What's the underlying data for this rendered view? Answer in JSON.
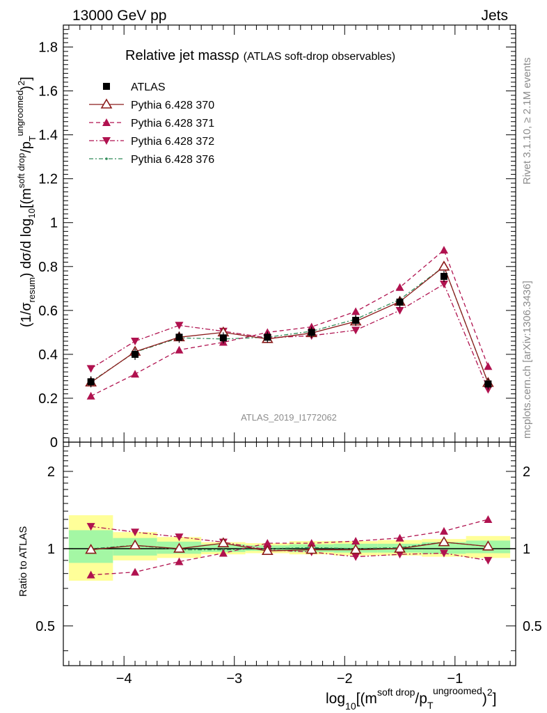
{
  "header": {
    "left": "13000 GeV pp",
    "right": "Jets"
  },
  "side_labels": {
    "rivet": "Rivet 3.1.10, ≥ 2.1M events",
    "mcplots": "mcplots.cern.ch [arXiv:1306.3436]"
  },
  "watermark": "ATLAS_2019_I1772062",
  "colors": {
    "data": "#000000",
    "s370": "#8b1a1a",
    "s371": "#b0124f",
    "s372": "#b0124f",
    "s376": "#2e8b57",
    "band_inner": "#a4f7a4",
    "band_outer": "#ffff99"
  },
  "chart_data": [
    {
      "type": "line",
      "title": "Relative jet massρ",
      "subtitle": "(ATLAS soft-drop observables)",
      "ylabel": "(1/σ_resum) dσ/d log10[(m^soft drop/p_T^ungroomed)^2]",
      "ylim": [
        0,
        1.9
      ],
      "yticks": [
        0,
        0.2,
        0.4,
        0.6,
        0.8,
        1,
        1.2,
        1.4,
        1.6,
        1.8
      ],
      "ytick_labels": [
        "0",
        "0.2",
        "0.4",
        "0.6",
        "0.8",
        "1",
        "1.2",
        "1.4",
        "1.6",
        "1.8"
      ],
      "x": [
        -4.3,
        -3.9,
        -3.5,
        -3.1,
        -2.7,
        -2.3,
        -1.9,
        -1.5,
        -1.1,
        -0.7
      ],
      "legend_position": "top-left",
      "series": [
        {
          "name": "ATLAS",
          "values": [
            0.275,
            0.4,
            0.478,
            0.475,
            0.478,
            0.5,
            0.555,
            0.638,
            0.755,
            0.265
          ]
        },
        {
          "name": "Pythia 6.428 370",
          "values": [
            0.272,
            0.412,
            0.478,
            0.5,
            0.47,
            0.497,
            0.55,
            0.64,
            0.8,
            0.27
          ]
        },
        {
          "name": "Pythia 6.428 371",
          "values": [
            0.21,
            0.31,
            0.42,
            0.455,
            0.5,
            0.525,
            0.595,
            0.705,
            0.875,
            0.345
          ]
        },
        {
          "name": "Pythia 6.428 372",
          "values": [
            0.335,
            0.46,
            0.532,
            0.505,
            0.475,
            0.485,
            0.51,
            0.6,
            0.72,
            0.24
          ]
        },
        {
          "name": "Pythia 6.428 376",
          "values": [
            0.275,
            0.41,
            0.475,
            0.47,
            0.478,
            0.505,
            0.56,
            0.65,
            0.8,
            0.27
          ]
        }
      ]
    },
    {
      "type": "line",
      "xlabel": "log10[(m^soft drop/p_T^ungroomed)^2]",
      "ylabel": "Ratio to ATLAS",
      "yscale": "log",
      "ylim": [
        0.35,
        2.6
      ],
      "ytick_labels": [
        "0.5",
        "1",
        "2"
      ],
      "xlim": [
        -4.55,
        -0.45
      ],
      "xtick_labels": [
        "−4",
        "−3",
        "−2",
        "−1"
      ],
      "x": [
        -4.3,
        -3.9,
        -3.5,
        -3.1,
        -2.7,
        -2.3,
        -1.9,
        -1.5,
        -1.1,
        -0.7
      ],
      "bins": [
        [
          -4.5,
          -4.1
        ],
        [
          -4.1,
          -3.7
        ],
        [
          -3.7,
          -3.3
        ],
        [
          -3.3,
          -2.9
        ],
        [
          -2.9,
          -2.5
        ],
        [
          -2.5,
          -2.1
        ],
        [
          -2.1,
          -1.7
        ],
        [
          -1.7,
          -1.3
        ],
        [
          -1.3,
          -0.9
        ],
        [
          -0.9,
          -0.5
        ]
      ],
      "band_inner": [
        [
          0.88,
          1.18
        ],
        [
          0.94,
          1.1
        ],
        [
          0.955,
          1.065
        ],
        [
          0.97,
          1.04
        ],
        [
          0.98,
          1.03
        ],
        [
          0.97,
          1.04
        ],
        [
          0.965,
          1.045
        ],
        [
          0.965,
          1.045
        ],
        [
          0.955,
          1.06
        ],
        [
          0.96,
          1.075
        ]
      ],
      "band_outer": [
        [
          0.75,
          1.35
        ],
        [
          0.9,
          1.16
        ],
        [
          0.92,
          1.11
        ],
        [
          0.95,
          1.06
        ],
        [
          0.96,
          1.05
        ],
        [
          0.95,
          1.07
        ],
        [
          0.94,
          1.07
        ],
        [
          0.94,
          1.08
        ],
        [
          0.93,
          1.09
        ],
        [
          0.92,
          1.12
        ]
      ],
      "series": [
        {
          "name": "Pythia 6.428 370",
          "values": [
            0.99,
            1.03,
            1.0,
            1.05,
            0.98,
            0.99,
            0.99,
            1.0,
            1.06,
            1.02
          ]
        },
        {
          "name": "Pythia 6.428 371",
          "values": [
            0.79,
            0.81,
            0.89,
            0.96,
            1.05,
            1.05,
            1.07,
            1.1,
            1.17,
            1.3
          ]
        },
        {
          "name": "Pythia 6.428 372",
          "values": [
            1.22,
            1.16,
            1.11,
            1.06,
            0.99,
            0.97,
            0.93,
            0.95,
            0.96,
            0.9
          ]
        },
        {
          "name": "Pythia 6.428 376",
          "values": [
            1.0,
            1.03,
            0.99,
            0.99,
            1.0,
            1.01,
            1.0,
            1.01,
            1.06,
            1.02
          ]
        }
      ]
    }
  ]
}
